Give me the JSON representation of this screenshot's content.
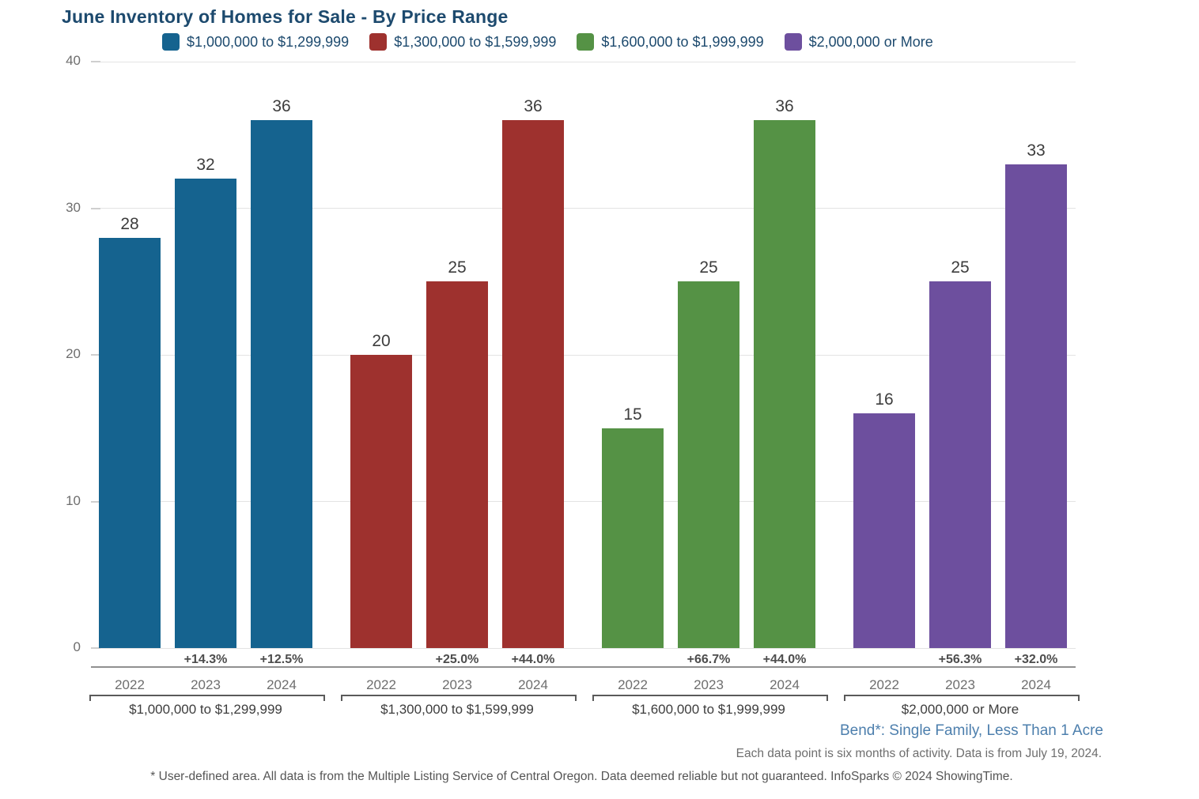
{
  "title": "June Inventory of Homes for Sale - By Price Range",
  "chart_data": {
    "type": "bar",
    "title": "June Inventory of Homes for Sale - By Price Range",
    "categories": [
      "2022",
      "2023",
      "2024"
    ],
    "groups": [
      {
        "label": "$1,000,000 to $1,299,999",
        "color": "#15638f",
        "values": [
          28,
          32,
          36
        ],
        "pct_changes": [
          null,
          "+14.3%",
          "+12.5%"
        ]
      },
      {
        "label": "$1,300,000 to $1,599,999",
        "color": "#9e312e",
        "values": [
          20,
          25,
          36
        ],
        "pct_changes": [
          null,
          "+25.0%",
          "+44.0%"
        ]
      },
      {
        "label": "$1,600,000 to $1,999,999",
        "color": "#559245",
        "values": [
          15,
          25,
          36
        ],
        "pct_changes": [
          null,
          "+66.7%",
          "+44.0%"
        ]
      },
      {
        "label": "$2,000,000 or More",
        "color": "#6d4f9e",
        "values": [
          16,
          25,
          33
        ],
        "pct_changes": [
          null,
          "+56.3%",
          "+32.0%"
        ]
      }
    ],
    "ylim": [
      0,
      40
    ],
    "yticks": [
      0,
      10,
      20,
      30,
      40
    ],
    "grid": true,
    "legend_position": "top"
  },
  "annotations": {
    "area_label": "Bend*: Single Family, Less Than 1 Acre",
    "data_note": "Each data point is six months of activity. Data is from July 19, 2024.",
    "footer": "* User-defined area. All data is from the Multiple Listing Service of Central Oregon. Data deemed reliable but not guaranteed. InfoSparks © 2024 ShowingTime."
  },
  "colors": {
    "title_text": "#1d4a6e",
    "axis_text": "#6e6e6e",
    "value_text": "#3d3d3d",
    "gridline": "#e3e3e3",
    "area_label_text": "#4d7fad"
  }
}
